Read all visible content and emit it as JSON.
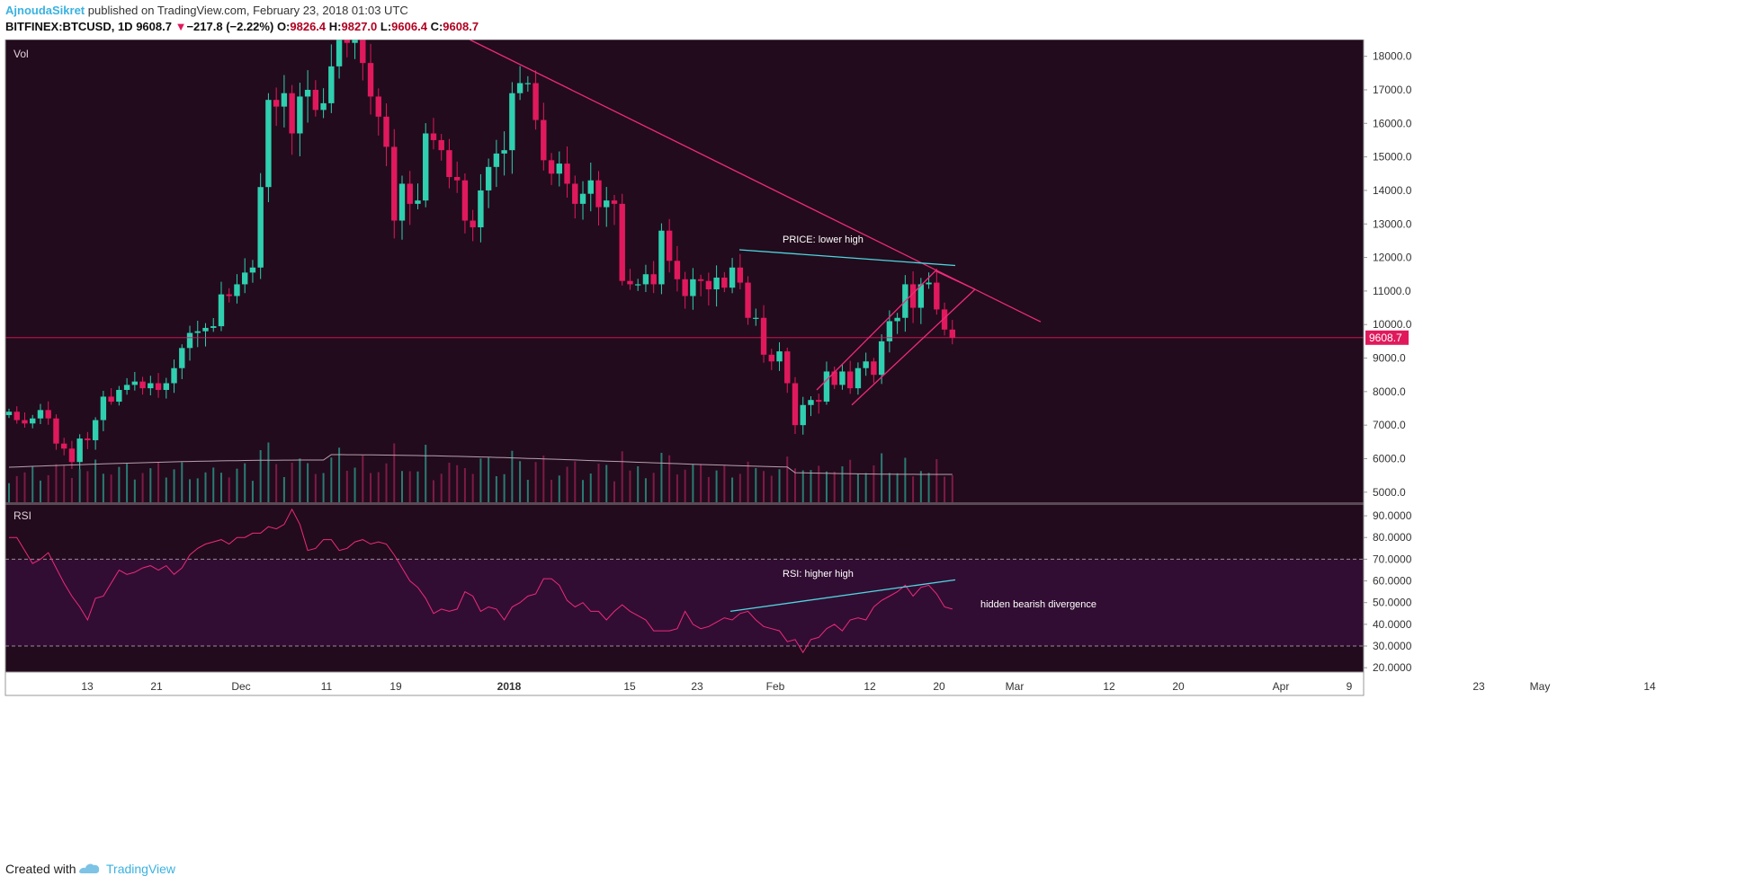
{
  "header": {
    "author": "AjnoudaSikret",
    "published_text": "published on TradingView.com, February 23, 2018 01:03 UTC",
    "symbol": "BITFINEX:BTCUSD, 1D",
    "last": "9608.7",
    "change_arrow": "▼",
    "change": "−217.8 (−2.22%)",
    "open_label": "O:",
    "open": "9826.4",
    "high_label": "H:",
    "high": "9827.0",
    "low_label": "L:",
    "low": "9606.4",
    "close_label": "C:",
    "close": "9608.7"
  },
  "footer": {
    "created_with": "Created with",
    "brand": "TradingView"
  },
  "colors": {
    "background": "#220b1c",
    "rsi_band": "#320d33",
    "up": "#2fcfb0",
    "down": "#e0195d",
    "trendline": "#ee2a7b",
    "cyan": "#4ed6e0",
    "axis_text": "#c8c8c8",
    "price_tag": "#e0195d"
  },
  "chart_data": [
    {
      "type": "candlestick",
      "title": "BITFINEX:BTCUSD, 1D",
      "panel_label": "Vol",
      "ylim": [
        4700,
        18500
      ],
      "y_ticks": [
        "18000.0",
        "17000.0",
        "16000.0",
        "15000.0",
        "14000.0",
        "13000.0",
        "12000.0",
        "11000.0",
        "10000.0",
        "9000.0",
        "8000.0",
        "7000.0",
        "6000.0",
        "5000.0"
      ],
      "last_price_label": "9608.7",
      "last_price": 9608.7,
      "start_date": "2017-11-04",
      "closes": [
        7400,
        7150,
        7050,
        7200,
        7450,
        7200,
        6450,
        6300,
        5900,
        6600,
        6550,
        7150,
        7850,
        7700,
        8050,
        8200,
        8300,
        8100,
        8250,
        8050,
        8250,
        8700,
        9300,
        9750,
        9800,
        9900,
        9950,
        10900,
        10850,
        11200,
        11550,
        11700,
        14100,
        16700,
        16500,
        16900,
        15700,
        16800,
        17000,
        16400,
        16600,
        17700,
        19200,
        18400,
        19000,
        17800,
        16800,
        16200,
        15300,
        13100,
        14200,
        13600,
        13700,
        15700,
        15500,
        15200,
        14400,
        14300,
        13100,
        12900,
        14000,
        14700,
        15100,
        15200,
        16900,
        17200,
        17200,
        16100,
        14900,
        14500,
        14800,
        14200,
        13600,
        13900,
        14300,
        13500,
        13700,
        13600,
        11300,
        11200,
        11200,
        11500,
        11200,
        12800,
        11900,
        11350,
        10850,
        11350,
        11300,
        11050,
        11400,
        11100,
        11700,
        11250,
        10200,
        10200,
        9100,
        8900,
        9200,
        8250,
        7000,
        7600,
        7750,
        7700,
        8600,
        8200,
        8600,
        8100,
        8700,
        8900,
        8500,
        9500,
        10100,
        10200,
        11200,
        10500,
        11200,
        11250,
        10450,
        9850,
        9608.7
      ],
      "volume_avg_label": "",
      "annotations": [
        {
          "text": "PRICE: lower high"
        }
      ],
      "x_ticks": [
        "13",
        "21",
        "Dec",
        "11",
        "19",
        "2018",
        "15",
        "23",
        "Feb",
        "12",
        "20",
        "Mar",
        "12",
        "20",
        "Apr",
        "9",
        "23",
        "May",
        "14"
      ]
    },
    {
      "type": "line",
      "title": "RSI",
      "ylim": [
        18,
        95
      ],
      "y_ticks": [
        "90.0000",
        "80.0000",
        "70.0000",
        "60.0000",
        "50.0000",
        "40.0000",
        "30.0000",
        "20.0000"
      ],
      "overbought": 70,
      "oversold": 30,
      "values": [
        80,
        80,
        74,
        68,
        70,
        73,
        66,
        59,
        53,
        48,
        42,
        52,
        53,
        59,
        65,
        63,
        64,
        66,
        67,
        65,
        67,
        63,
        66,
        72,
        75,
        77,
        78,
        79,
        77,
        80,
        80,
        82,
        82,
        85,
        84,
        86,
        93,
        86,
        74,
        75,
        79,
        79,
        74,
        75,
        78,
        79,
        77,
        78,
        77,
        72,
        66,
        60,
        57,
        52,
        45,
        47,
        46,
        47,
        55,
        53,
        46,
        48,
        47,
        42,
        48,
        50,
        53,
        54,
        61,
        61,
        58,
        51,
        48,
        50,
        46,
        46,
        42,
        46,
        49,
        46,
        44,
        42,
        37,
        37,
        37,
        38,
        46,
        40,
        38,
        39,
        41,
        43,
        42,
        45,
        46,
        42,
        39,
        38,
        37,
        32,
        33,
        27,
        33,
        34,
        38,
        40,
        37,
        42,
        43,
        42,
        48,
        51,
        53,
        55,
        58,
        53,
        57,
        58,
        54,
        48,
        47
      ],
      "annotations": [
        {
          "text": "RSI: higher high"
        },
        {
          "text": "hidden bearish divergence"
        }
      ]
    }
  ]
}
